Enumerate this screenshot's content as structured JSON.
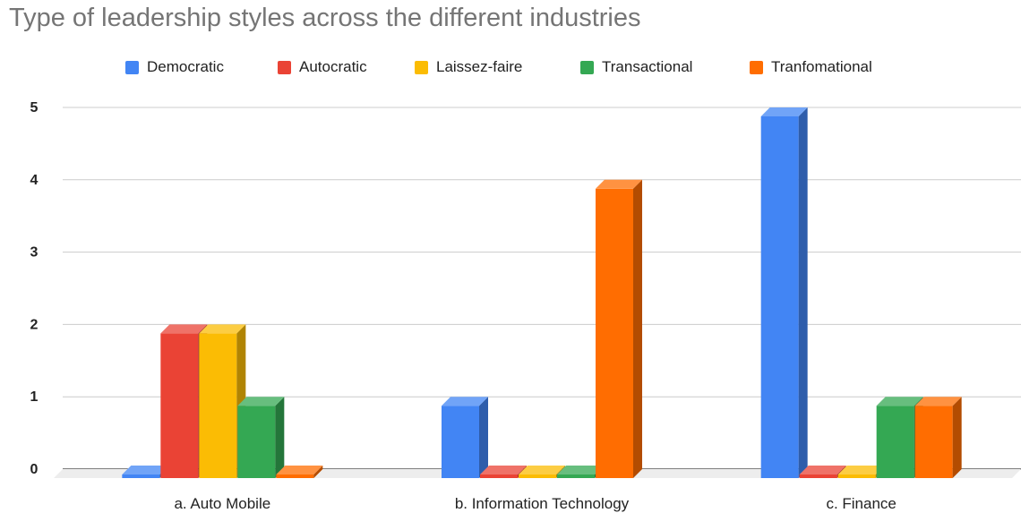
{
  "chart_data": {
    "type": "bar",
    "title": "Type of leadership styles across the different industries",
    "xlabel": "",
    "ylabel": "",
    "ylim": [
      0,
      5
    ],
    "yticks": [
      "0",
      "1",
      "2",
      "3",
      "4",
      "5"
    ],
    "grid": true,
    "legend_position": "top",
    "categories": [
      "a. Auto Mobile",
      "b. Information Technology",
      "c. Finance"
    ],
    "series": [
      {
        "name": "Democratic",
        "color": "#4285f4",
        "values": [
          0,
          1,
          5
        ]
      },
      {
        "name": "Autocratic",
        "color": "#ea4335",
        "values": [
          2,
          0,
          0
        ]
      },
      {
        "name": "Laissez-faire",
        "color": "#fbbc04",
        "values": [
          2,
          0,
          0
        ]
      },
      {
        "name": "Transactional",
        "color": "#34a853",
        "values": [
          1,
          0,
          1
        ]
      },
      {
        "name": "Tranfomational",
        "color": "#ff6d01",
        "values": [
          0,
          4,
          1
        ]
      }
    ]
  }
}
